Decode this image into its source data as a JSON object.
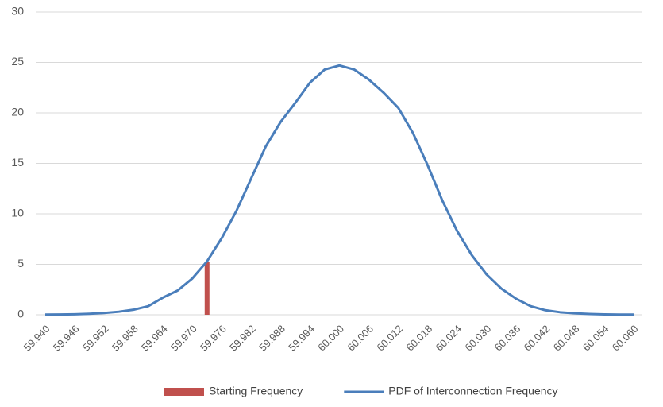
{
  "chart_data": {
    "type": "line",
    "categories": [
      "59.940",
      null,
      "59.946",
      null,
      "59.952",
      null,
      "59.958",
      null,
      "59.964",
      null,
      "59.970",
      null,
      "59.976",
      null,
      "59.982",
      null,
      "59.988",
      null,
      "59.994",
      null,
      "60.000",
      null,
      "60.006",
      null,
      "60.012",
      null,
      "60.018",
      null,
      "60.024",
      null,
      "60.030",
      null,
      "60.036",
      null,
      "60.042",
      null,
      "60.048",
      null,
      "60.054",
      null,
      "60.060"
    ],
    "series": [
      {
        "name": "Starting Frequency",
        "type": "bar",
        "color": "#c0504d",
        "values": [
          null,
          null,
          null,
          null,
          null,
          null,
          null,
          null,
          null,
          null,
          null,
          5.2,
          null,
          null,
          null,
          null,
          null,
          null,
          null,
          null,
          null,
          null,
          null,
          null,
          null,
          null,
          null,
          null,
          null,
          null,
          null,
          null,
          null,
          null,
          null,
          null,
          null,
          null,
          null,
          null,
          null
        ]
      },
      {
        "name": "PDF of Interconnection Frequency",
        "type": "line",
        "color": "#4a7ebb",
        "values": [
          0.02,
          0.03,
          0.05,
          0.1,
          0.18,
          0.3,
          0.5,
          0.85,
          1.7,
          2.4,
          3.6,
          5.3,
          7.6,
          10.3,
          13.5,
          16.7,
          19.1,
          21.0,
          23.0,
          24.3,
          24.7,
          24.3,
          23.3,
          22.0,
          20.5,
          18.0,
          14.8,
          11.3,
          8.3,
          5.9,
          4.0,
          2.6,
          1.6,
          0.85,
          0.45,
          0.25,
          0.15,
          0.08,
          0.04,
          0.02,
          0.02
        ]
      }
    ],
    "ylim": [
      0,
      30
    ],
    "yticks": [
      0,
      5,
      10,
      15,
      20,
      25,
      30
    ],
    "grid": true,
    "legend": "bottom"
  }
}
